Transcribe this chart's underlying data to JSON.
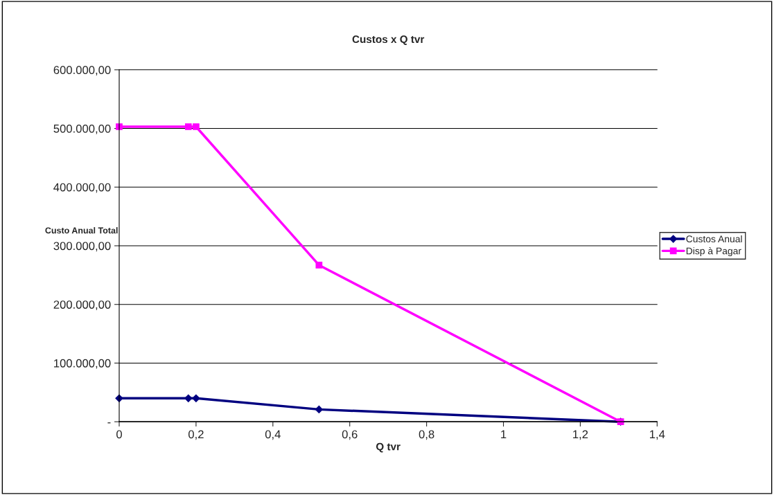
{
  "chart_data": {
    "type": "line",
    "title": "Custos x Q tvr",
    "xlabel": "Q tvr",
    "ylabel": "Custo Anual Total",
    "x": [
      0,
      0.18,
      0.2,
      0.52,
      1.305
    ],
    "series": [
      {
        "name": "Custos Anual",
        "color": "#000080",
        "marker": "diamond",
        "values": [
          40000,
          40000,
          40000,
          21000,
          0
        ]
      },
      {
        "name": "Disp à Pagar",
        "color": "#ff00ff",
        "marker": "square",
        "values": [
          503000,
          503000,
          503000,
          267000,
          0
        ]
      }
    ],
    "xlim": [
      0,
      1.4
    ],
    "xticks": [
      0,
      {
        "value": 0.2,
        "label": "0,2"
      },
      {
        "value": 0.4,
        "label": "0,4"
      },
      {
        "value": 0.6,
        "label": "0,6"
      },
      {
        "value": 0.8,
        "label": "0,8"
      },
      1,
      {
        "value": 1.2,
        "label": "1,2"
      },
      {
        "value": 1.4,
        "label": "1,4"
      }
    ],
    "ylim": [
      0,
      600000
    ],
    "yticks": [
      {
        "value": 0,
        "label": "-"
      },
      {
        "value": 100000,
        "label": "100.000,00"
      },
      {
        "value": 200000,
        "label": "200.000,00"
      },
      {
        "value": 300000,
        "label": "300.000,00"
      },
      {
        "value": 400000,
        "label": "400.000,00"
      },
      {
        "value": 500000,
        "label": "500.000,00"
      },
      {
        "value": 600000,
        "label": "600.000,00"
      }
    ],
    "grid": "y",
    "legend": "right",
    "line_style": "solid"
  }
}
